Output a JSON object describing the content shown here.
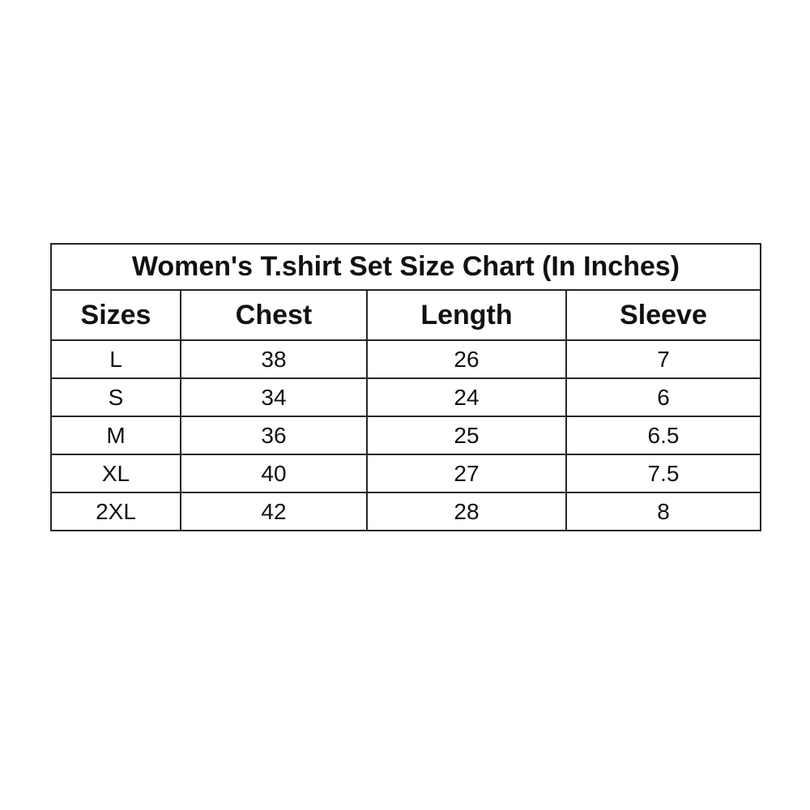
{
  "colors": {
    "background": "#ffffff",
    "text": "#111111",
    "border": "#262626"
  },
  "chart_data": {
    "type": "table",
    "title": "Women's T.shirt Set Size Chart (In Inches)",
    "columns": [
      "Sizes",
      "Chest",
      "Length",
      "Sleeve"
    ],
    "rows": [
      [
        "L",
        "38",
        "26",
        "7"
      ],
      [
        "S",
        "34",
        "24",
        "6"
      ],
      [
        "M",
        "36",
        "25",
        "6.5"
      ],
      [
        "XL",
        "40",
        "27",
        "7.5"
      ],
      [
        "2XL",
        "42",
        "28",
        "8"
      ]
    ]
  }
}
